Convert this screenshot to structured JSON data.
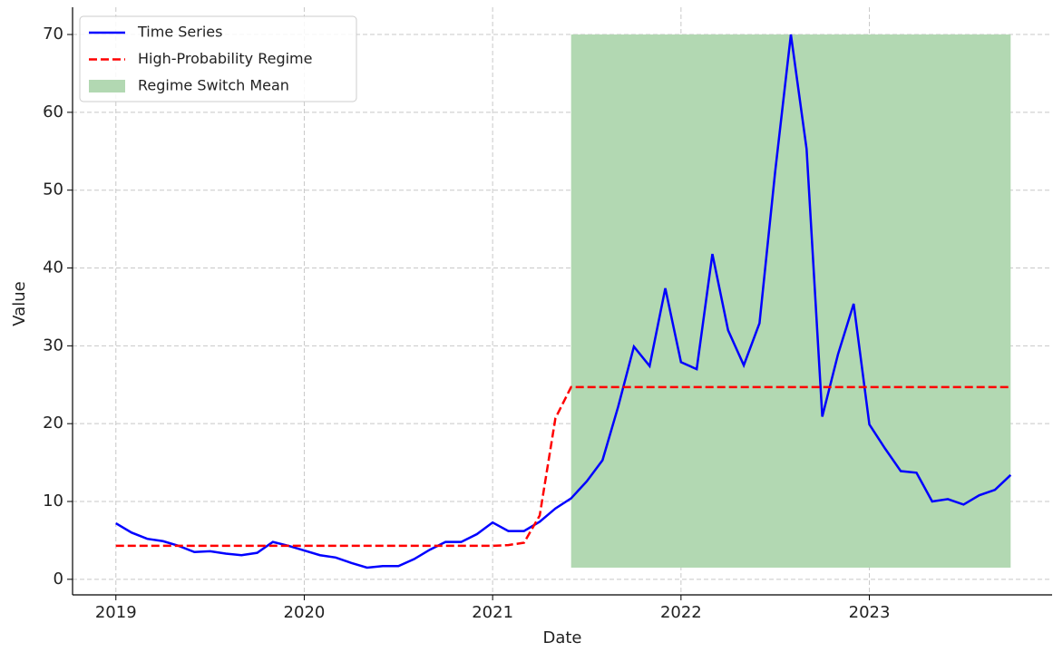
{
  "chart_data": {
    "type": "line",
    "xlabel": "Date",
    "ylabel": "Value",
    "x": [
      "2019-01",
      "2019-02",
      "2019-03",
      "2019-04",
      "2019-05",
      "2019-06",
      "2019-07",
      "2019-08",
      "2019-09",
      "2019-10",
      "2019-11",
      "2019-12",
      "2020-01",
      "2020-02",
      "2020-03",
      "2020-04",
      "2020-05",
      "2020-06",
      "2020-07",
      "2020-08",
      "2020-09",
      "2020-10",
      "2020-11",
      "2020-12",
      "2021-01",
      "2021-02",
      "2021-03",
      "2021-04",
      "2021-05",
      "2021-06",
      "2021-07",
      "2021-08",
      "2021-09",
      "2021-10",
      "2021-11",
      "2021-12",
      "2022-01",
      "2022-02",
      "2022-03",
      "2022-04",
      "2022-05",
      "2022-06",
      "2022-07",
      "2022-08",
      "2022-09",
      "2022-10",
      "2022-11",
      "2022-12",
      "2023-01",
      "2023-02",
      "2023-03",
      "2023-04",
      "2023-05",
      "2023-06",
      "2023-07",
      "2023-08",
      "2023-09",
      "2023-10"
    ],
    "series": [
      {
        "name": "Time Series",
        "color": "#0000ff",
        "dash": false,
        "values": [
          7.2,
          6.0,
          5.2,
          4.9,
          4.3,
          3.5,
          3.6,
          3.3,
          3.1,
          3.4,
          4.8,
          4.3,
          3.7,
          3.1,
          2.8,
          2.1,
          1.5,
          1.7,
          1.7,
          2.6,
          3.8,
          4.8,
          4.8,
          5.8,
          7.3,
          6.2,
          6.2,
          7.4,
          9.1,
          10.4,
          12.6,
          15.3,
          22.2,
          29.9,
          27.4,
          37.4,
          27.9,
          27.0,
          41.8,
          32.0,
          27.5,
          32.9,
          52.4,
          70.0,
          55.3,
          20.9,
          28.9,
          35.4,
          19.9,
          16.8,
          13.9,
          13.7,
          10.0,
          10.3,
          9.6,
          10.8,
          11.5,
          13.4
        ]
      },
      {
        "name": "High-Probability Regime",
        "color": "#ff0000",
        "dash": true,
        "values": [
          4.3,
          4.3,
          4.3,
          4.3,
          4.3,
          4.3,
          4.3,
          4.3,
          4.3,
          4.3,
          4.3,
          4.3,
          4.3,
          4.3,
          4.3,
          4.3,
          4.3,
          4.3,
          4.3,
          4.3,
          4.3,
          4.3,
          4.3,
          4.3,
          4.3,
          4.4,
          4.7,
          8.2,
          20.7,
          24.7,
          24.7,
          24.7,
          24.7,
          24.7,
          24.7,
          24.7,
          24.7,
          24.7,
          24.7,
          24.7,
          24.7,
          24.7,
          24.7,
          24.7,
          24.7,
          24.7,
          24.7,
          24.7,
          24.7,
          24.7,
          24.7,
          24.7,
          24.7,
          24.7,
          24.7,
          24.7,
          24.7,
          24.7
        ]
      }
    ],
    "span": {
      "name": "Regime Switch Mean",
      "color": "#b2d8b2",
      "x": [
        "2021-06",
        "2023-10"
      ],
      "y": [
        1.5,
        70
      ]
    },
    "xlim": [
      2018.77,
      2023.97
    ],
    "xticks": [
      2019,
      2020,
      2021,
      2022,
      2023
    ],
    "ylim": [
      -2,
      73.5
    ],
    "yticks": [
      0,
      10,
      20,
      30,
      40,
      50,
      60,
      70
    ],
    "grid": true,
    "legend": "upper left"
  }
}
